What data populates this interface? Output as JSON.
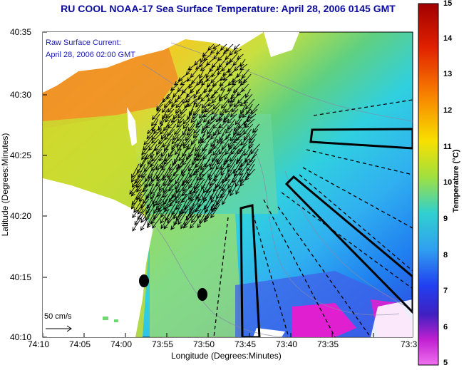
{
  "title": "RU COOL  NOAA-17  Sea Surface Temperature:  April 28, 2006 0145 GMT",
  "legend": {
    "line1": "Raw Surface Current:",
    "line2": "April 28, 2006 02:00 GMT",
    "scale_label": "50 cm/s"
  },
  "axes": {
    "xlabel": "Longitude (Degrees:Minutes)",
    "ylabel": "Latitude (Degrees:Minutes)",
    "xticks": [
      "74:10",
      "74:05",
      "74:00",
      "73:55",
      "73:50",
      "73:45",
      "73:40",
      "73:35",
      "73:3"
    ],
    "yticks": [
      "40:35",
      "40:30",
      "40:25",
      "40:20",
      "40:15",
      "40:10"
    ]
  },
  "colorbar": {
    "label": "Temperature (°C)",
    "ticks": [
      "15",
      "14",
      "13",
      "12",
      "11",
      "10",
      "9",
      "8",
      "7",
      "6",
      "5"
    ],
    "min": 5,
    "max": 15
  },
  "colors": {
    "title": "#0a0aa0",
    "land": "#ffffff",
    "warm": "#f07820",
    "mid": "#c8dc30",
    "cool": "#30c0f0",
    "cold": "#e010c8"
  }
}
